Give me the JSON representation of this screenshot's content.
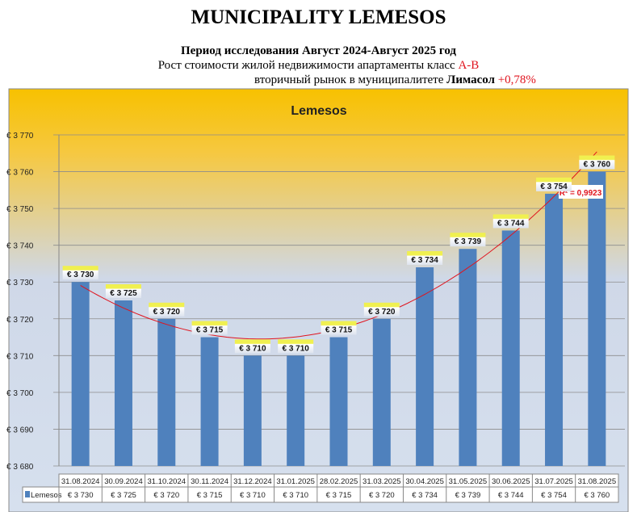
{
  "header": {
    "title": "MUNICIPALITY LEMESOS",
    "period": "Период исследования Август 2024-Август 2025 год",
    "line2_text": "Рост стоимости жилой недвижимости апартаменты класс ",
    "line2_class": "A-B",
    "line3_text": "вторичный рынок в муниципалитете ",
    "line3_city": "Лимасол",
    "line3_change": "+0,78%"
  },
  "chart_data": {
    "type": "bar",
    "title": "Lemesos",
    "categories": [
      "31.08.2024",
      "30.09.2024",
      "31.10.2024",
      "30.11.2024",
      "31.12.2024",
      "31.01.2025",
      "28.02.2025",
      "31.03.2025",
      "30.04.2025",
      "31.05.2025",
      "30.06.2025",
      "31.07.2025",
      "31.08.2025"
    ],
    "series": [
      {
        "name": "Lemesos",
        "values": [
          3730,
          3725,
          3720,
          3715,
          3710,
          3710,
          3715,
          3720,
          3734,
          3739,
          3744,
          3754,
          3760
        ],
        "color": "#4f81bd"
      }
    ],
    "data_labels": [
      "€ 3 730",
      "€ 3 725",
      "€ 3 720",
      "€ 3 715",
      "€ 3 710",
      "€ 3 710",
      "€ 3 715",
      "€ 3 720",
      "€ 3 734",
      "€ 3 739",
      "€ 3 744",
      "€ 3 754",
      "€ 3 760"
    ],
    "yticks": [
      "€ 3 680",
      "€ 3 690",
      "€ 3 700",
      "€ 3 710",
      "€ 3 720",
      "€ 3 730",
      "€ 3 740",
      "€ 3 750",
      "€ 3 760",
      "€ 3 770"
    ],
    "ylim": [
      3680,
      3770
    ],
    "grid": true,
    "trendline": {
      "type": "polynomial",
      "color": "#e0141e",
      "label": "R² = 0,9923"
    },
    "legend": "data-table"
  }
}
